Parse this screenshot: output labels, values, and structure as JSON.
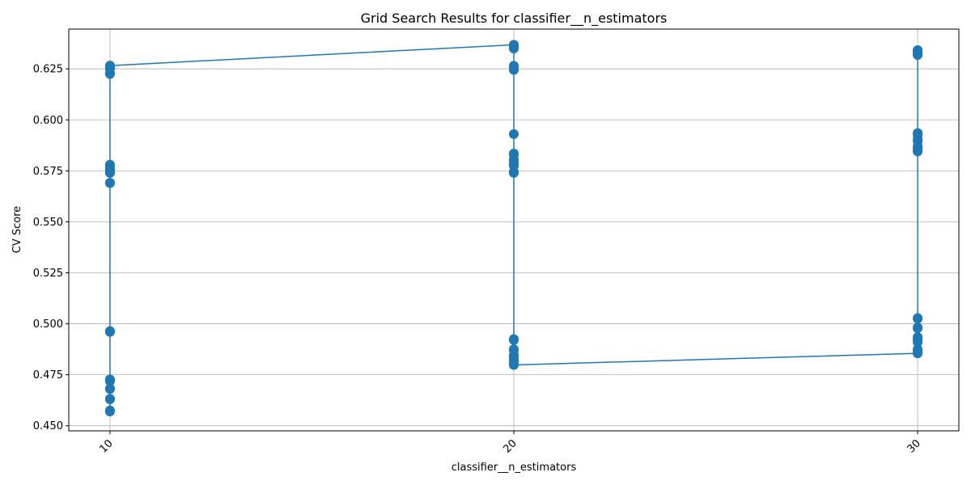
{
  "chart_data": {
    "type": "line",
    "title": "Grid Search Results for classifier__n_estimators",
    "xlabel": "classifier__n_estimators",
    "ylabel": "CV Score",
    "x_ticks": [
      10,
      20,
      30
    ],
    "y_ticks": [
      0.45,
      0.475,
      0.5,
      0.525,
      0.55,
      0.575,
      0.6,
      0.625
    ],
    "y_tick_labels": [
      "0.450",
      "0.475",
      "0.500",
      "0.525",
      "0.550",
      "0.575",
      "0.600",
      "0.625"
    ],
    "xlim": [
      8.98,
      31.02
    ],
    "ylim": [
      0.4475,
      0.6445
    ],
    "grid": true,
    "color": "#1f77b4",
    "series": [
      {
        "x": [
          10,
          10,
          10,
          10,
          10,
          10,
          10,
          10,
          10,
          10,
          10,
          10,
          10,
          10,
          10,
          10,
          10,
          10,
          10,
          10,
          10,
          10,
          10,
          10,
          10,
          10,
          10,
          10,
          20,
          20,
          20,
          20,
          20,
          20,
          20,
          20,
          20,
          20,
          20,
          20,
          20,
          20,
          20,
          20,
          20,
          20,
          20,
          20,
          20,
          20,
          20,
          20,
          20,
          20,
          20,
          20,
          30,
          30,
          30,
          30,
          30,
          30,
          30,
          30,
          30,
          30,
          30,
          30,
          30,
          30,
          30,
          30,
          30,
          30,
          30,
          30,
          30,
          30,
          30,
          30,
          30,
          30,
          30,
          30
        ],
        "y": [
          0.457,
          0.4573,
          0.4575,
          0.463,
          0.4632,
          0.468,
          0.4682,
          0.4718,
          0.4723,
          0.4727,
          0.496,
          0.4962,
          0.4964,
          0.569,
          0.5692,
          0.574,
          0.5745,
          0.575,
          0.5755,
          0.576,
          0.577,
          0.578,
          0.6225,
          0.6228,
          0.625,
          0.6255,
          0.6262,
          0.6266,
          0.6368,
          0.6362,
          0.6356,
          0.635,
          0.6265,
          0.626,
          0.625,
          0.6245,
          0.593,
          0.5835,
          0.583,
          0.5805,
          0.5795,
          0.5785,
          0.5775,
          0.5745,
          0.574,
          0.4925,
          0.492,
          0.4875,
          0.487,
          0.4845,
          0.4838,
          0.4825,
          0.482,
          0.4805,
          0.48,
          0.4798,
          0.4855,
          0.486,
          0.487,
          0.4875,
          0.491,
          0.492,
          0.4928,
          0.4935,
          0.4978,
          0.4982,
          0.5025,
          0.5028,
          0.5845,
          0.585,
          0.586,
          0.587,
          0.5895,
          0.5905,
          0.5925,
          0.593,
          0.5935,
          0.6318,
          0.6322,
          0.6325,
          0.6335,
          0.6338,
          0.634,
          0.6342
        ]
      }
    ]
  }
}
